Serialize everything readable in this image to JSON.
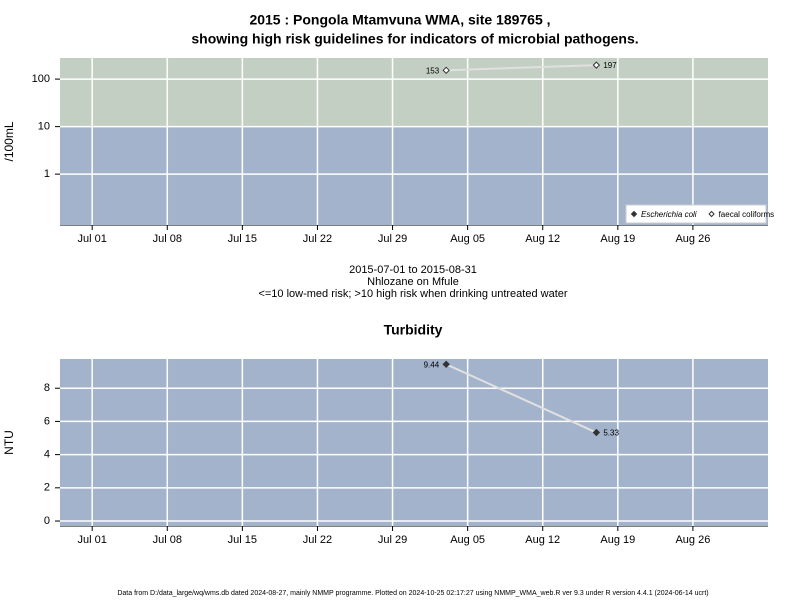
{
  "chart_data": [
    {
      "type": "line",
      "title": [
        "2015 : Pongola Mtamvuna WMA, site 189765 ,",
        "showing high risk guidelines for indicators of microbial pathogens."
      ],
      "ylabel": "/100mL",
      "notes": [
        "2015-07-01 to 2015-08-31",
        "Nhlozane on Mfule",
        "<=10 low-med risk; >10 high risk when drinking untreated water"
      ],
      "log_y": true,
      "background": "#a3b3cc",
      "bands": [
        {
          "from": 10,
          "color": "#c3cfc3"
        }
      ],
      "grid": true,
      "legend": "bottom-right",
      "x": [
        "2015-08-03",
        "2015-08-17"
      ],
      "xlim": [
        "2015-06-28",
        "2015-09-02"
      ],
      "xticks": [
        {
          "value": "2015-07-01",
          "label": "Jul 01"
        },
        {
          "value": "2015-07-08",
          "label": "Jul 08"
        },
        {
          "value": "2015-07-15",
          "label": "Jul 15"
        },
        {
          "value": "2015-07-22",
          "label": "Jul 22"
        },
        {
          "value": "2015-07-29",
          "label": "Jul 29"
        },
        {
          "value": "2015-08-05",
          "label": "Aug 05"
        },
        {
          "value": "2015-08-12",
          "label": "Aug 12"
        },
        {
          "value": "2015-08-19",
          "label": "Aug 19"
        },
        {
          "value": "2015-08-26",
          "label": "Aug 26"
        }
      ],
      "ylim": [
        0.085,
        278
      ],
      "yticks": [
        1,
        10,
        100
      ],
      "series": [
        {
          "name": "Escherichia coli",
          "color": "#333333",
          "marker": "filled",
          "values": [
            null,
            null
          ]
        },
        {
          "name": "faecal coliforms",
          "color": "#333333",
          "marker": "open",
          "values": [
            153,
            197
          ]
        }
      ]
    },
    {
      "type": "line",
      "title": "Turbidity",
      "ylabel": "NTU",
      "log_y": false,
      "background": "#a3b3cc",
      "grid": true,
      "x": [
        "2015-08-03",
        "2015-08-17"
      ],
      "xlim": [
        "2015-06-28",
        "2015-09-02"
      ],
      "xticks": [
        {
          "value": "2015-07-01",
          "label": "Jul 01"
        },
        {
          "value": "2015-07-08",
          "label": "Jul 08"
        },
        {
          "value": "2015-07-15",
          "label": "Jul 15"
        },
        {
          "value": "2015-07-22",
          "label": "Jul 22"
        },
        {
          "value": "2015-07-29",
          "label": "Jul 29"
        },
        {
          "value": "2015-08-05",
          "label": "Aug 05"
        },
        {
          "value": "2015-08-12",
          "label": "Aug 12"
        },
        {
          "value": "2015-08-19",
          "label": "Aug 19"
        },
        {
          "value": "2015-08-26",
          "label": "Aug 26"
        }
      ],
      "ylim": [
        -0.3,
        9.76
      ],
      "yticks": [
        0,
        2,
        4,
        6,
        8
      ],
      "series": [
        {
          "name": "Turbidity",
          "color": "#333333",
          "marker": "filled",
          "values": [
            9.44,
            5.33
          ]
        }
      ]
    }
  ],
  "footer": "Data from D:/data_large/wq/wms.db dated 2024-08-27, mainly NMMP programme. Plotted on 2024-10-25 02:17:27 using NMMP_WMA_web.R ver 9.3 under R version 4.4.1 (2024-06-14 ucrt)"
}
